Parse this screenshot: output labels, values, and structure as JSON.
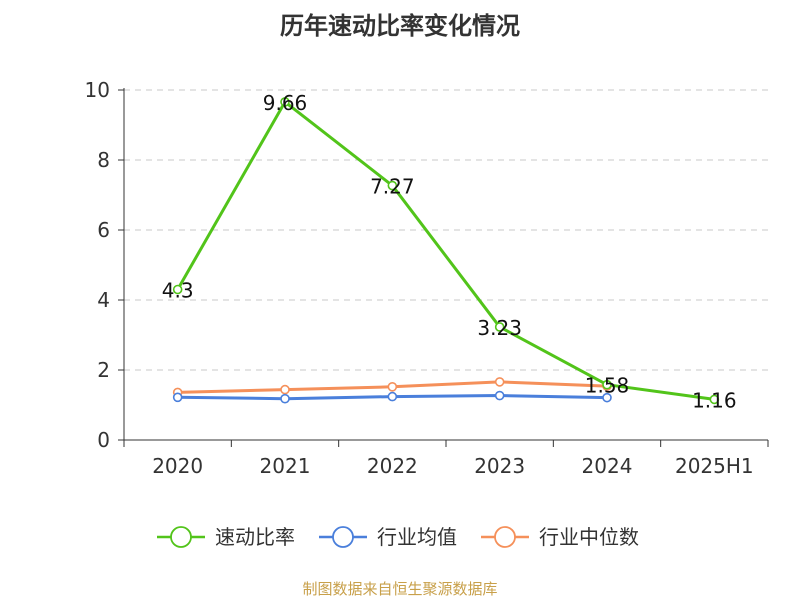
{
  "title": "历年速动比率变化情况",
  "source": "制图数据来自恒生聚源数据库",
  "chart_data": {
    "type": "line",
    "title": "历年速动比率变化情况",
    "categories": [
      "2020",
      "2021",
      "2022",
      "2023",
      "2024",
      "2025H1"
    ],
    "ylim": [
      0,
      10
    ],
    "yticks": [
      0,
      2,
      4,
      6,
      8,
      10
    ],
    "grid": true,
    "legend_position": "bottom",
    "series": [
      {
        "name": "速动比率",
        "color": "#52c41a",
        "values": [
          4.3,
          9.66,
          7.27,
          3.23,
          1.58,
          1.16
        ],
        "labels": [
          "4.3",
          "9.66",
          "7.27",
          "3.23",
          "1.58",
          "1.16"
        ]
      },
      {
        "name": "行业均值",
        "color": "#4a7fdb",
        "values": [
          1.22,
          1.18,
          1.24,
          1.27,
          1.21,
          null
        ]
      },
      {
        "name": "行业中位数",
        "color": "#f5905a",
        "values": [
          1.36,
          1.44,
          1.52,
          1.66,
          1.54,
          null
        ]
      }
    ]
  }
}
